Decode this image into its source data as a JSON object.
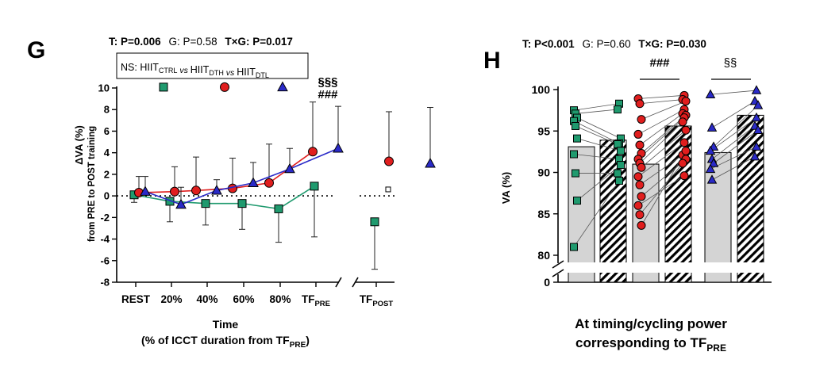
{
  "colors": {
    "ctrl": "#1f9a6e",
    "dth": "#e01e1e",
    "dtl": "#2a2ac8",
    "bar_fill": "#d4d4d4",
    "axis": "#000000"
  },
  "panel_g": {
    "letter": "G",
    "stats": [
      {
        "label": "T: P=0.006",
        "bold": true
      },
      {
        "label": "G: P=0.58",
        "bold": false
      },
      {
        "label": "T×G: P=0.017",
        "bold": true
      }
    ],
    "legend": {
      "prefix": "NS: ",
      "items": [
        {
          "base": "HIIT",
          "sub": "CTRL"
        },
        {
          "base": "HIIT",
          "sub": "DTH"
        },
        {
          "base": "HIIT",
          "sub": "DTL"
        }
      ],
      "joiner": "vs"
    },
    "ylabel_main": "ΔVA (%)",
    "ylabel_sub": "from PRE to POST training",
    "xlabel_line1": "Time",
    "xlabel_line2_pre": "(% of ICCT duration from TF",
    "xlabel_line2_sub": "PRE",
    "xlabel_line2_post": ")",
    "sig_top": "§§§",
    "sig_bottom": "###"
  },
  "panel_h": {
    "letter": "H",
    "stats": [
      {
        "label": "T: P<0.001",
        "bold": true
      },
      {
        "label": "G: P=0.60",
        "bold": false
      },
      {
        "label": "T×G: P=0.030",
        "bold": true
      }
    ],
    "ylabel": "VA (%)",
    "xlabel_line1": "At timing/cycling power",
    "xlabel_line2_pre": "corresponding to TF",
    "xlabel_line2_sub": "PRE",
    "sig_dth": "###",
    "sig_dtl": "§§"
  },
  "chart_data": [
    {
      "type": "line",
      "title": "T: P=0.006 G: P=0.58 T×G: P=0.017",
      "ylabel": "ΔVA (%) from PRE to POST training",
      "xlabel": "Time (% of ICCT duration from TFPRE)",
      "ylim": [
        -8,
        10
      ],
      "yticks": [
        -8,
        -6,
        -4,
        -2,
        0,
        2,
        4,
        6,
        8,
        10
      ],
      "categories": [
        "REST",
        "20%",
        "40%",
        "60%",
        "80%",
        "TF_PRE",
        "TF_POST"
      ],
      "tick_labels": [
        {
          "base": "REST",
          "sub": ""
        },
        {
          "base": "20%",
          "sub": ""
        },
        {
          "base": "40%",
          "sub": ""
        },
        {
          "base": "60%",
          "sub": ""
        },
        {
          "base": "80%",
          "sub": ""
        },
        {
          "base": "TF",
          "sub": "PRE"
        },
        {
          "base": "TF",
          "sub": "POST"
        }
      ],
      "series": [
        {
          "name": "HIIT_CTRL",
          "marker": "square",
          "color_key": "ctrl",
          "values": [
            0.1,
            -0.5,
            -0.7,
            -0.7,
            -1.2,
            0.9,
            -2.4
          ],
          "err_low": [
            0.7,
            1.9,
            2.0,
            2.4,
            3.1,
            4.7,
            4.4
          ],
          "err_high": [
            0,
            0,
            0,
            0,
            0,
            0,
            0
          ]
        },
        {
          "name": "HIIT_DTH",
          "marker": "circle",
          "color_key": "dth",
          "values": [
            0.3,
            0.4,
            0.5,
            0.7,
            1.2,
            4.1,
            3.2
          ],
          "err_low": [
            0,
            0,
            0,
            0,
            0,
            0,
            0
          ],
          "err_high": [
            1.5,
            2.3,
            3.1,
            2.8,
            3.6,
            4.6,
            4.6
          ]
        },
        {
          "name": "HIIT_DTL",
          "marker": "triangle",
          "color_key": "dtl",
          "values": [
            0.4,
            -0.8,
            0.5,
            1.2,
            2.5,
            4.4,
            3.0
          ],
          "err_low": [
            0,
            0,
            0,
            0,
            0,
            0,
            0
          ],
          "err_high": [
            1.4,
            1.6,
            1.0,
            1.9,
            1.9,
            3.9,
            5.2
          ]
        }
      ],
      "legend_overlay_points": [
        {
          "series": "HIIT_CTRL",
          "y": 10.3
        },
        {
          "series": "HIIT_DTH",
          "y": 10.3
        },
        {
          "series": "HIIT_DTL",
          "y": 10.3
        }
      ],
      "reference_line": 0,
      "tf_post_open_marker": 0.6
    },
    {
      "type": "bar",
      "title": "T: P<0.001 G: P=0.60 T×G: P=0.030",
      "ylabel": "VA (%)",
      "xlabel": "At timing/cycling power corresponding to TFPRE",
      "ylim": [
        80,
        100
      ],
      "yticks": [
        0,
        80,
        85,
        90,
        95,
        100
      ],
      "axis_break": true,
      "groups": [
        {
          "name": "HIIT_CTRL",
          "color_key": "ctrl",
          "marker": "square",
          "pre_mean": 93.1,
          "post_mean": 93.9,
          "pre": [
            97.5,
            97.1,
            96.6,
            96.2,
            95.6,
            94.1,
            92.2,
            89.9,
            86.6,
            81.0
          ],
          "post": [
            98.3,
            97.6,
            94.1,
            93.5,
            93.4,
            92.6,
            91.6,
            89.9,
            90.9,
            89.0
          ]
        },
        {
          "name": "HIIT_DTH",
          "color_key": "dth",
          "marker": "circle",
          "pre_mean": 91.0,
          "post_mean": 95.6,
          "pre": [
            98.9,
            98.3,
            96.4,
            94.6,
            93.3,
            92.3,
            91.6,
            91.1,
            90.6,
            89.5,
            88.5,
            87.1,
            86.0,
            84.9,
            83.6
          ],
          "post": [
            99.3,
            98.8,
            98.6,
            97.6,
            97.1,
            96.9,
            96.6,
            96.1,
            95.1,
            93.6,
            92.1,
            91.6,
            89.6,
            91.1,
            92.6
          ]
        },
        {
          "name": "HIIT_DTL",
          "color_key": "dtl",
          "marker": "triangle",
          "pre_mean": 92.4,
          "post_mean": 96.9,
          "pre": [
            99.4,
            95.4,
            93.1,
            92.6,
            91.6,
            91.1,
            90.4,
            89.1
          ],
          "post": [
            99.9,
            98.6,
            98.1,
            96.6,
            95.6,
            95.1,
            93.1,
            91.9
          ]
        }
      ]
    }
  ]
}
